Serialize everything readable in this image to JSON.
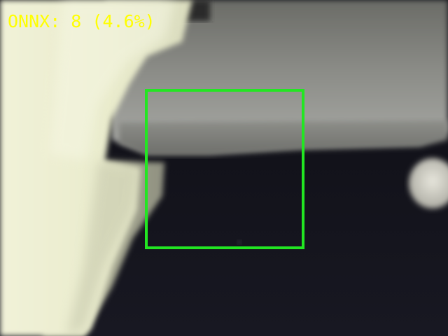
{
  "overlay": {
    "label": "ONNX: 8 (4.6%)",
    "label_color": "#ffff00"
  },
  "detection": {
    "box_color": "#22e622"
  }
}
